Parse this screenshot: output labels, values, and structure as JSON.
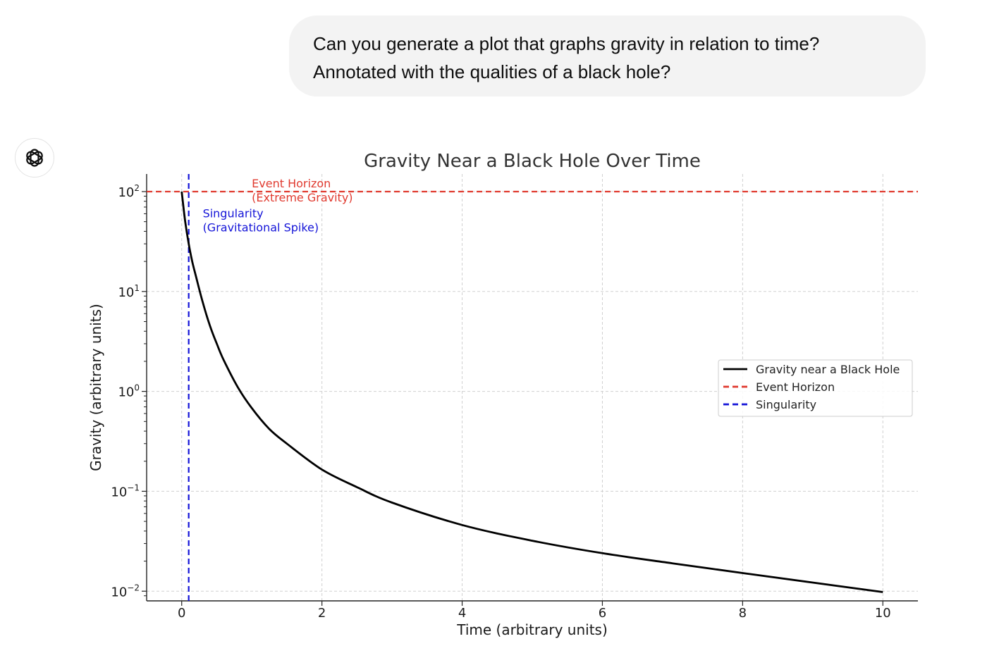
{
  "conversation": {
    "user_message": {
      "lines": [
        "Can you generate a plot that graphs gravity in relation to time?",
        "Annotated with the qualities of a black hole?"
      ]
    },
    "assistant": {
      "avatar_icon": "openai-logo-icon"
    }
  },
  "chart_data": {
    "type": "line",
    "title": "Gravity Near a Black Hole Over Time",
    "xlabel": "Time (arbitrary units)",
    "ylabel": "Gravity (arbitrary units)",
    "xlim": [
      -0.5,
      10.5
    ],
    "ylim": [
      0.008,
      150
    ],
    "yscale": "log",
    "grid": true,
    "xticks": [
      0,
      2,
      4,
      6,
      8,
      10
    ],
    "xtick_labels": [
      "0",
      "2",
      "4",
      "6",
      "8",
      "10"
    ],
    "yticks": [
      0.01,
      0.1,
      1,
      10,
      100
    ],
    "ytick_labels": [
      {
        "base": "10",
        "exp": "−2"
      },
      {
        "base": "10",
        "exp": "−1"
      },
      {
        "base": "10",
        "exp": "0"
      },
      {
        "base": "10",
        "exp": "1"
      },
      {
        "base": "10",
        "exp": "2"
      }
    ],
    "series": [
      {
        "name": "Gravity near a Black Hole",
        "color": "#000000",
        "style": "solid",
        "x": [
          0.0,
          0.05,
          0.1,
          0.15,
          0.2,
          0.3,
          0.4,
          0.5,
          0.6,
          0.8,
          1.0,
          1.25,
          1.5,
          2.0,
          2.5,
          3.0,
          4.0,
          5.0,
          6.0,
          7.0,
          8.0,
          9.0,
          10.0
        ],
        "y": [
          100,
          50,
          30,
          20,
          14.5,
          7.8,
          4.6,
          3.0,
          2.05,
          1.1,
          0.68,
          0.42,
          0.3,
          0.165,
          0.11,
          0.077,
          0.046,
          0.032,
          0.024,
          0.019,
          0.0152,
          0.0122,
          0.0098
        ]
      }
    ],
    "reference_lines": [
      {
        "name": "Event Horizon",
        "orientation": "horizontal",
        "value": 100,
        "color": "#e03a2f",
        "style": "dashed"
      },
      {
        "name": "Singularity",
        "orientation": "vertical",
        "value": 0.1,
        "color": "#1414d8",
        "style": "dashed"
      }
    ],
    "annotations": [
      {
        "lines": [
          "Event Horizon",
          "(Extreme Gravity)"
        ],
        "x": 1.0,
        "y": 100,
        "color": "#e03a2f"
      },
      {
        "lines": [
          "Singularity",
          "(Gravitational Spike)"
        ],
        "x": 0.3,
        "y": 50,
        "color": "#1414d8"
      }
    ],
    "legend": {
      "position": "center-right",
      "entries": [
        {
          "label": "Gravity near a Black Hole",
          "color": "#000000",
          "style": "solid"
        },
        {
          "label": "Event Horizon",
          "color": "#e03a2f",
          "style": "dashed"
        },
        {
          "label": "Singularity",
          "color": "#1414d8",
          "style": "dashed"
        }
      ]
    }
  }
}
